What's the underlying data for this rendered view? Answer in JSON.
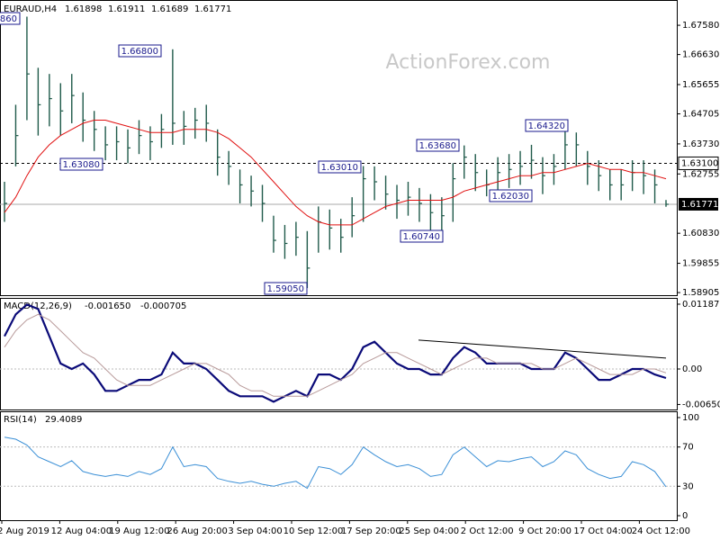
{
  "chart_data": [
    {
      "type": "ohlc",
      "title": "EURAUD,H4",
      "ohlc": [
        1.61898,
        1.61911,
        1.61689,
        1.61771
      ],
      "watermark": "ActionForex.com",
      "color": "#1f5a4a",
      "ma_color": "#e01010",
      "ylim": [
        1.5882,
        1.684
      ],
      "yticks": [
        {
          "value": 1.6758,
          "label": "1.67580"
        },
        {
          "value": 1.6663,
          "label": "1.66630"
        },
        {
          "value": 1.65655,
          "label": "1.65655"
        },
        {
          "value": 1.64705,
          "label": "1.64705"
        },
        {
          "value": 1.6373,
          "label": "1.63730"
        },
        {
          "value": 1.62755,
          "label": "1.62755"
        },
        {
          "value": 1.6083,
          "label": "1.60830"
        },
        {
          "value": 1.59855,
          "label": "1.59855"
        },
        {
          "value": 1.58905,
          "label": "1.58905"
        }
      ],
      "level": {
        "value": 1.631,
        "label": "1.63100"
      },
      "annotations": [
        {
          "label": "860"
        },
        {
          "value": 1.668,
          "label": "1.66800"
        },
        {
          "value": 1.6308,
          "label": "1.63080"
        },
        {
          "value": 1.6301,
          "label": "1.63010"
        },
        {
          "value": 1.6368,
          "label": "1.63680"
        },
        {
          "value": 1.6432,
          "label": "1.64320"
        },
        {
          "value": 1.6203,
          "label": "1.62030"
        },
        {
          "value": 1.6074,
          "label": "1.60740"
        },
        {
          "value": 1.5905,
          "label": "1.59050"
        }
      ],
      "high": [
        1.625,
        1.65,
        1.6786,
        1.662,
        1.66,
        1.657,
        1.66,
        1.654,
        1.648,
        1.643,
        1.643,
        1.642,
        1.645,
        1.643,
        1.647,
        1.668,
        1.648,
        1.649,
        1.65,
        1.642,
        1.635,
        1.629,
        1.627,
        1.624,
        1.614,
        1.611,
        1.612,
        1.609,
        1.617,
        1.616,
        1.613,
        1.62,
        1.6301,
        1.63,
        1.627,
        1.624,
        1.625,
        1.623,
        1.621,
        1.62,
        1.631,
        1.6368,
        1.634,
        1.629,
        1.633,
        1.634,
        1.635,
        1.637,
        1.633,
        1.634,
        1.6432,
        1.641,
        1.635,
        1.632,
        1.629,
        1.629,
        1.632,
        1.632,
        1.629,
        1.6191
      ],
      "low": [
        1.612,
        1.63,
        1.645,
        1.64,
        1.643,
        1.64,
        1.644,
        1.638,
        1.635,
        1.632,
        1.632,
        1.631,
        1.634,
        1.632,
        1.636,
        1.637,
        1.637,
        1.639,
        1.638,
        1.627,
        1.624,
        1.618,
        1.617,
        1.612,
        1.602,
        1.6,
        1.601,
        1.5905,
        1.602,
        1.603,
        1.602,
        1.607,
        1.612,
        1.619,
        1.616,
        1.613,
        1.614,
        1.612,
        1.6074,
        1.608,
        1.612,
        1.626,
        1.622,
        1.6203,
        1.622,
        1.623,
        1.624,
        1.626,
        1.621,
        1.624,
        1.629,
        1.63,
        1.624,
        1.622,
        1.619,
        1.619,
        1.622,
        1.621,
        1.618,
        1.6169
      ],
      "close": [
        1.618,
        1.64,
        1.66,
        1.65,
        1.652,
        1.648,
        1.653,
        1.645,
        1.642,
        1.637,
        1.638,
        1.636,
        1.64,
        1.638,
        1.642,
        1.644,
        1.643,
        1.645,
        1.644,
        1.633,
        1.63,
        1.624,
        1.622,
        1.618,
        1.606,
        1.605,
        1.607,
        1.597,
        1.612,
        1.61,
        1.607,
        1.614,
        1.626,
        1.625,
        1.621,
        1.619,
        1.62,
        1.618,
        1.615,
        1.614,
        1.626,
        1.633,
        1.628,
        1.624,
        1.628,
        1.629,
        1.63,
        1.632,
        1.627,
        1.63,
        1.637,
        1.637,
        1.63,
        1.627,
        1.624,
        1.624,
        1.628,
        1.627,
        1.624,
        1.6177
      ],
      "ma": [
        1.615,
        1.62,
        1.627,
        1.633,
        1.637,
        1.64,
        1.642,
        1.644,
        1.645,
        1.645,
        1.644,
        1.643,
        1.642,
        1.641,
        1.641,
        1.641,
        1.642,
        1.642,
        1.642,
        1.641,
        1.639,
        1.636,
        1.633,
        1.629,
        1.625,
        1.621,
        1.617,
        1.614,
        1.612,
        1.611,
        1.611,
        1.611,
        1.613,
        1.615,
        1.617,
        1.618,
        1.619,
        1.619,
        1.619,
        1.619,
        1.62,
        1.622,
        1.623,
        1.624,
        1.625,
        1.626,
        1.627,
        1.627,
        1.628,
        1.628,
        1.629,
        1.63,
        1.631,
        1.63,
        1.629,
        1.629,
        1.628,
        1.628,
        1.627,
        1.626
      ]
    },
    {
      "type": "macd",
      "title": "MACD(12,26,9)",
      "last_labels": [
        "-0.001650",
        "-0.000705"
      ],
      "ylim": [
        -0.00742,
        0.01302
      ],
      "yticks": [
        {
          "value": 0.01187,
          "label": "0.01187"
        },
        {
          "value": 0,
          "label": "0.00"
        },
        {
          "value": -0.006502,
          "label": "-0.006502"
        }
      ],
      "series": [
        {
          "name": "MACD",
          "color": "#0a0a78",
          "values": [
            0.006,
            0.01,
            0.0118,
            0.011,
            0.006,
            0.001,
            0,
            0.001,
            -0.001,
            -0.004,
            -0.004,
            -0.003,
            -0.002,
            -0.002,
            -0.001,
            0.003,
            0.001,
            0.001,
            0,
            -0.002,
            -0.004,
            -0.005,
            -0.005,
            -0.005,
            -0.006,
            -0.005,
            -0.004,
            -0.005,
            -0.001,
            -0.001,
            -0.002,
            0,
            0.004,
            0.005,
            0.003,
            0.001,
            0,
            0,
            -0.001,
            -0.001,
            0.002,
            0.004,
            0.003,
            0.001,
            0.001,
            0.001,
            0.001,
            0,
            0,
            0,
            0.003,
            0.002,
            0,
            -0.002,
            -0.002,
            -0.001,
            0,
            0,
            -0.001,
            -0.00165
          ]
        },
        {
          "name": "Signal",
          "color": "#b89a9a",
          "values": [
            0.004,
            0.007,
            0.009,
            0.01,
            0.009,
            0.007,
            0.005,
            0.003,
            0.002,
            0,
            -0.002,
            -0.003,
            -0.003,
            -0.003,
            -0.002,
            -0.001,
            0,
            0.001,
            0.001,
            0,
            -0.001,
            -0.003,
            -0.004,
            -0.004,
            -0.005,
            -0.005,
            -0.005,
            -0.005,
            -0.004,
            -0.003,
            -0.002,
            -0.001,
            0.001,
            0.002,
            0.003,
            0.003,
            0.002,
            0.001,
            0,
            -0.001,
            0,
            0.001,
            0.002,
            0.002,
            0.001,
            0.001,
            0.001,
            0.001,
            0,
            0,
            0.001,
            0.002,
            0.001,
            0,
            -0.001,
            -0.001,
            -0.001,
            0,
            0,
            -0.000705
          ]
        }
      ],
      "trendline": [
        0.0053,
        0.002
      ]
    },
    {
      "type": "rsi",
      "title": "RSI(14)",
      "color": "#3a8fd6",
      "ylim": [
        -4.6,
        106.4
      ],
      "yticks": [
        0,
        30,
        70,
        100
      ],
      "levels": [
        30,
        70
      ],
      "values": [
        80,
        78,
        72,
        60,
        55,
        50,
        56,
        45,
        42,
        40,
        42,
        40,
        45,
        42,
        48,
        70,
        50,
        52,
        50,
        38,
        35,
        33,
        35,
        32,
        30,
        33,
        35,
        28,
        50,
        48,
        42,
        52,
        70,
        62,
        55,
        50,
        52,
        48,
        40,
        42,
        62,
        70,
        60,
        50,
        56,
        55,
        58,
        60,
        50,
        55,
        66,
        62,
        48,
        42,
        38,
        40,
        55,
        52,
        45,
        29.4089
      ],
      "x_labels": [
        "2 Aug 2019",
        "12 Aug 04:00",
        "19 Aug 12:00",
        "26 Aug 20:00",
        "3 Sep 04:00",
        "10 Sep 12:00",
        "17 Sep 20:00",
        "25 Sep 04:00",
        "2 Oct 12:00",
        "9 Oct 20:00",
        "17 Oct 04:00",
        "24 Oct 12:00"
      ]
    }
  ]
}
